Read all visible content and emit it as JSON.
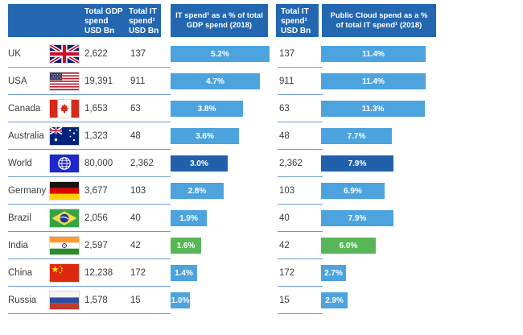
{
  "headers": {
    "gdp": "Total GDP\nspend\nUSD Bn",
    "it": "Total IT\nspend¹\nUSD Bn",
    "it_pct": "IT spend¹ as a % of total\nGDP spend (2018)",
    "it2": "Total IT\nspend¹\nUSD Bn",
    "cloud_pct": "Public Cloud spend as a %\nof total IT spend¹ (2018)"
  },
  "rows": [
    {
      "country": "UK",
      "flag": "uk",
      "gdp": "2,622",
      "it": "137",
      "it_pct": 5.2,
      "it_pct_label": "5.2%",
      "it2": "137",
      "cloud_pct": 11.4,
      "cloud_pct_label": "11.4%",
      "bar_color": "light"
    },
    {
      "country": "USA",
      "flag": "usa",
      "gdp": "19,391",
      "it": "911",
      "it_pct": 4.7,
      "it_pct_label": "4.7%",
      "it2": "911",
      "cloud_pct": 11.4,
      "cloud_pct_label": "11.4%",
      "bar_color": "light"
    },
    {
      "country": "Canada",
      "flag": "canada",
      "gdp": "1,653",
      "it": "63",
      "it_pct": 3.8,
      "it_pct_label": "3.8%",
      "it2": "63",
      "cloud_pct": 11.3,
      "cloud_pct_label": "11.3%",
      "bar_color": "light"
    },
    {
      "country": "Australia",
      "flag": "australia",
      "gdp": "1,323",
      "it": "48",
      "it_pct": 3.6,
      "it_pct_label": "3.6%",
      "it2": "48",
      "cloud_pct": 7.7,
      "cloud_pct_label": "7.7%",
      "bar_color": "light"
    },
    {
      "country": "World",
      "flag": "world",
      "gdp": "80,000",
      "it": "2,362",
      "it_pct": 3.0,
      "it_pct_label": "3.0%",
      "it2": "2,362",
      "cloud_pct": 7.9,
      "cloud_pct_label": "7.9%",
      "bar_color": "dark"
    },
    {
      "country": "Germany",
      "flag": "germany",
      "gdp": "3,677",
      "it": "103",
      "it_pct": 2.8,
      "it_pct_label": "2.8%",
      "it2": "103",
      "cloud_pct": 6.9,
      "cloud_pct_label": "6.9%",
      "bar_color": "light"
    },
    {
      "country": "Brazil",
      "flag": "brazil",
      "gdp": "2,056",
      "it": "40",
      "it_pct": 1.9,
      "it_pct_label": "1.9%",
      "it2": "40",
      "cloud_pct": 7.9,
      "cloud_pct_label": "7.9%",
      "bar_color": "light"
    },
    {
      "country": "India",
      "flag": "india",
      "gdp": "2,597",
      "it": "42",
      "it_pct": 1.6,
      "it_pct_label": "1.6%",
      "it2": "42",
      "cloud_pct": 6.0,
      "cloud_pct_label": "6.0%",
      "bar_color": "green"
    },
    {
      "country": "China",
      "flag": "china",
      "gdp": "12,238",
      "it": "172",
      "it_pct": 1.4,
      "it_pct_label": "1.4%",
      "it2": "172",
      "cloud_pct": 2.7,
      "cloud_pct_label": "2.7%",
      "bar_color": "light"
    },
    {
      "country": "Russia",
      "flag": "russia",
      "gdp": "1,578",
      "it": "15",
      "it_pct": 1.0,
      "it_pct_label": "1.0%",
      "it2": "15",
      "cloud_pct": 2.9,
      "cloud_pct_label": "2.9%",
      "bar_color": "light"
    }
  ],
  "colors": {
    "header_bg": "#2367b1",
    "bar_light": "#4da3de",
    "bar_dark": "#2161ab",
    "bar_green": "#57b757",
    "separator": "#6d9bd3",
    "text": "#3c3c3c"
  },
  "chart_data": {
    "type": "bar",
    "categories": [
      "UK",
      "USA",
      "Canada",
      "Australia",
      "World",
      "Germany",
      "Brazil",
      "India",
      "China",
      "Russia"
    ],
    "series": [
      {
        "name": "Total GDP spend USD Bn",
        "values": [
          2622,
          19391,
          1653,
          1323,
          80000,
          3677,
          2056,
          2597,
          12238,
          1578
        ]
      },
      {
        "name": "Total IT spend¹ USD Bn",
        "values": [
          137,
          911,
          63,
          48,
          2362,
          103,
          40,
          42,
          172,
          15
        ]
      },
      {
        "name": "IT spend¹ as a % of total GDP spend (2018)",
        "values": [
          5.2,
          4.7,
          3.8,
          3.6,
          3.0,
          2.8,
          1.9,
          1.6,
          1.4,
          1.0
        ]
      },
      {
        "name": "Public Cloud spend as a % of total IT spend¹ (2018)",
        "values": [
          11.4,
          11.4,
          11.3,
          7.7,
          7.9,
          6.9,
          7.9,
          6.0,
          2.7,
          2.9
        ]
      }
    ],
    "title": "",
    "xlabel": "",
    "ylabel": "",
    "legend_position": "none",
    "grid": false,
    "highlight_rows": {
      "World": "dark-blue",
      "India": "green"
    },
    "axis_ranges": {
      "it_pct": [
        0,
        5.2
      ],
      "cloud_pct": [
        0,
        11.4
      ]
    }
  }
}
